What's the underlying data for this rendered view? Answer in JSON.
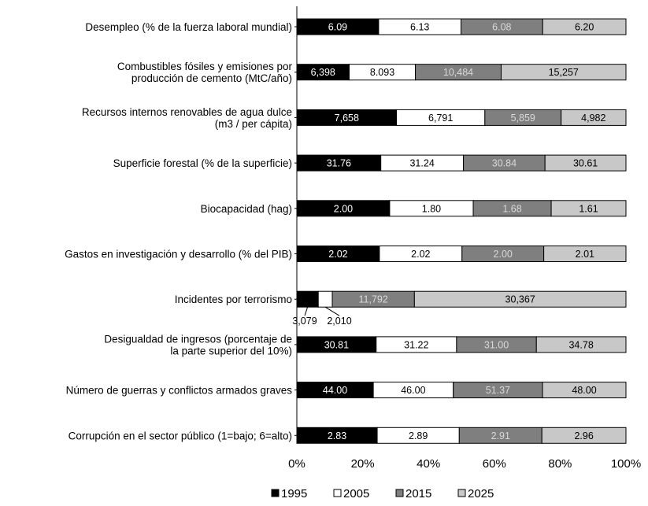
{
  "chart_data": {
    "type": "bar",
    "stacking": "percent",
    "orientation": "horizontal",
    "categories": [
      "Desempleo (% de la fuerza laboral mundial)",
      "Combustibles fósiles y emisiones por\nproducción de cemento (MtC/año)",
      "Recursos internos renovables de agua dulce\n(m3 / per cápita)",
      "Superficie forestal (% de la superficie)",
      "Biocapacidad (hag)",
      "Gastos en investigación y desarrollo (% del PIB)",
      "Incidentes por terrorismo",
      "Desigualdad de ingresos (porcentaje de\nla parte superior del 10%)",
      "Número de guerras y conflictos armados graves",
      "Corrupción en el sector público (1=bajo; 6=alto)"
    ],
    "series": [
      {
        "name": "1995",
        "color": "#000000",
        "text_color": "#ffffff",
        "values": [
          6.09,
          6398,
          7658,
          31.76,
          2.0,
          2.02,
          3079,
          30.81,
          44.0,
          2.83
        ],
        "labels": [
          "6.09",
          "6,398",
          "7,658",
          "31.76",
          "2.00",
          "2.02",
          "3,079",
          "30.81",
          "44.00",
          "2.83"
        ]
      },
      {
        "name": "2005",
        "color": "#ffffff",
        "text_color": "#000000",
        "values": [
          6.13,
          8093,
          6791,
          31.24,
          1.8,
          2.02,
          2010,
          31.22,
          46.0,
          2.89
        ],
        "labels": [
          "6.13",
          "8.093",
          "6,791",
          "31.24",
          "1.80",
          "2.02",
          "2,010",
          "31.22",
          "46.00",
          "2.89"
        ]
      },
      {
        "name": "2015",
        "color": "#7f7f7f",
        "text_color": "#d9d9d9",
        "values": [
          6.08,
          10484,
          5859,
          30.84,
          1.68,
          2.0,
          11792,
          31.0,
          51.37,
          2.91
        ],
        "labels": [
          "6.08",
          "10,484",
          "5,859",
          "30.84",
          "1.68",
          "2.00",
          "11,792",
          "31.00",
          "51.37",
          "2.91"
        ]
      },
      {
        "name": "2025",
        "color": "#c8c8c8",
        "text_color": "#000000",
        "values": [
          6.2,
          15257,
          4982,
          30.61,
          1.61,
          2.01,
          30367,
          34.78,
          48.0,
          2.96
        ],
        "labels": [
          "6.20",
          "15,257",
          "4,982",
          "30.61",
          "1.61",
          "2.01",
          "30,367",
          "34.78",
          "48.00",
          "2.96"
        ]
      }
    ],
    "outside_labels": {
      "category_index": 6,
      "series_indices": [
        0,
        1
      ]
    },
    "xaxis": {
      "range": [
        0,
        100
      ],
      "ticks": [
        "0%",
        "20%",
        "40%",
        "60%",
        "80%",
        "100%"
      ]
    },
    "legend": {
      "position": "bottom",
      "entries": [
        "1995",
        "2005",
        "2015",
        "2025"
      ]
    },
    "grid": false,
    "title": "",
    "xlabel": "",
    "ylabel": ""
  }
}
